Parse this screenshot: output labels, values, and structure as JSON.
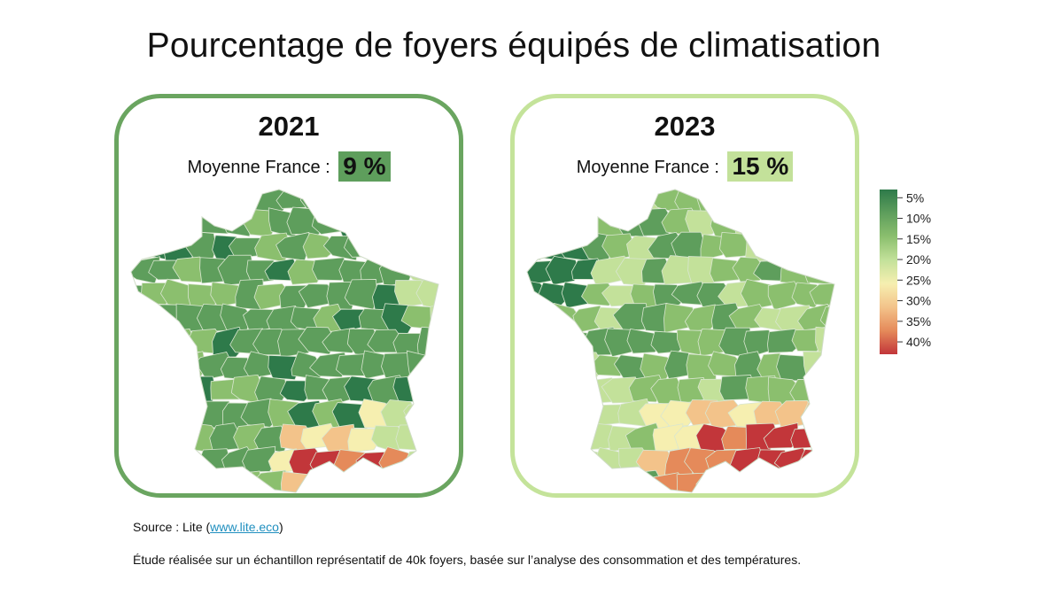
{
  "title": "Pourcentage de foyers équipés de climatisation",
  "colors": {
    "scale": [
      "#2e7a4a",
      "#5e9e5c",
      "#8bbf6e",
      "#c3e19a",
      "#f6efb0",
      "#f3c38a",
      "#e58a5a",
      "#c2363a"
    ],
    "avg_2021_bg": "#5e9e5c",
    "avg_2023_bg": "#c3e19a",
    "panel_2021_border": "#6aa560",
    "panel_2023_border": "#c4e39a",
    "link": "#1f8fbf"
  },
  "panels": [
    {
      "year": "2021",
      "avg_label": "Moyenne France :",
      "avg_value": "9 %"
    },
    {
      "year": "2023",
      "avg_label": "Moyenne France :",
      "avg_value": "15 %"
    }
  ],
  "legend": {
    "ticks": [
      "5%",
      "10%",
      "15%",
      "20%",
      "25%",
      "30%",
      "35%",
      "40%"
    ],
    "tick_values": [
      5,
      10,
      15,
      20,
      25,
      30,
      35,
      40
    ],
    "range": [
      3,
      43
    ]
  },
  "source": {
    "prefix": "Source : Lite (",
    "link_text": "www.lite.eco",
    "suffix": ")"
  },
  "note": "Étude réalisée sur un échantillon représentatif de 40k foyers, basée sur l’analyse des consommation et des températures."
}
